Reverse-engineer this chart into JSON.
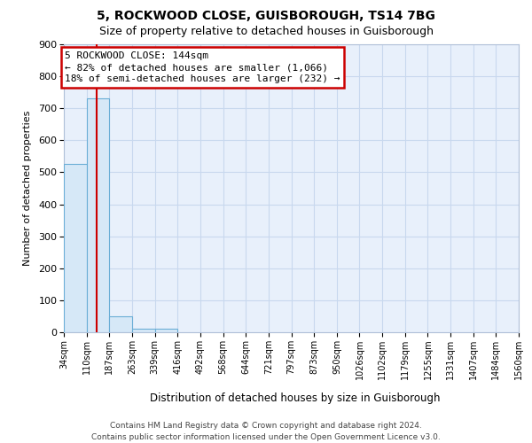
{
  "title1": "5, ROCKWOOD CLOSE, GUISBOROUGH, TS14 7BG",
  "title2": "Size of property relative to detached houses in Guisborough",
  "xlabel": "Distribution of detached houses by size in Guisborough",
  "ylabel": "Number of detached properties",
  "bin_edges": [
    34,
    110,
    187,
    263,
    339,
    416,
    492,
    568,
    644,
    721,
    797,
    873,
    950,
    1026,
    1102,
    1179,
    1255,
    1331,
    1407,
    1484,
    1560
  ],
  "bar_heights": [
    527,
    730,
    50,
    12,
    12,
    0,
    0,
    0,
    0,
    0,
    0,
    0,
    0,
    0,
    0,
    0,
    0,
    0,
    0,
    0
  ],
  "bar_facecolor": "#d6e8f7",
  "bar_edgecolor": "#6aaed6",
  "grid_color": "#c8d8ee",
  "background_color": "#e8f0fb",
  "property_size": 144,
  "red_line_color": "#cc0000",
  "annotation_line1": "5 ROCKWOOD CLOSE: 144sqm",
  "annotation_line2": "← 82% of detached houses are smaller (1,066)",
  "annotation_line3": "18% of semi-detached houses are larger (232) →",
  "annotation_border_color": "#cc0000",
  "ylim_max": 900,
  "yticks": [
    0,
    100,
    200,
    300,
    400,
    500,
    600,
    700,
    800,
    900
  ],
  "footer1": "Contains HM Land Registry data © Crown copyright and database right 2024.",
  "footer2": "Contains public sector information licensed under the Open Government Licence v3.0.",
  "tick_labels": [
    "34sqm",
    "110sqm",
    "187sqm",
    "263sqm",
    "339sqm",
    "416sqm",
    "492sqm",
    "568sqm",
    "644sqm",
    "721sqm",
    "797sqm",
    "873sqm",
    "950sqm",
    "1026sqm",
    "1102sqm",
    "1179sqm",
    "1255sqm",
    "1331sqm",
    "1407sqm",
    "1484sqm",
    "1560sqm"
  ]
}
